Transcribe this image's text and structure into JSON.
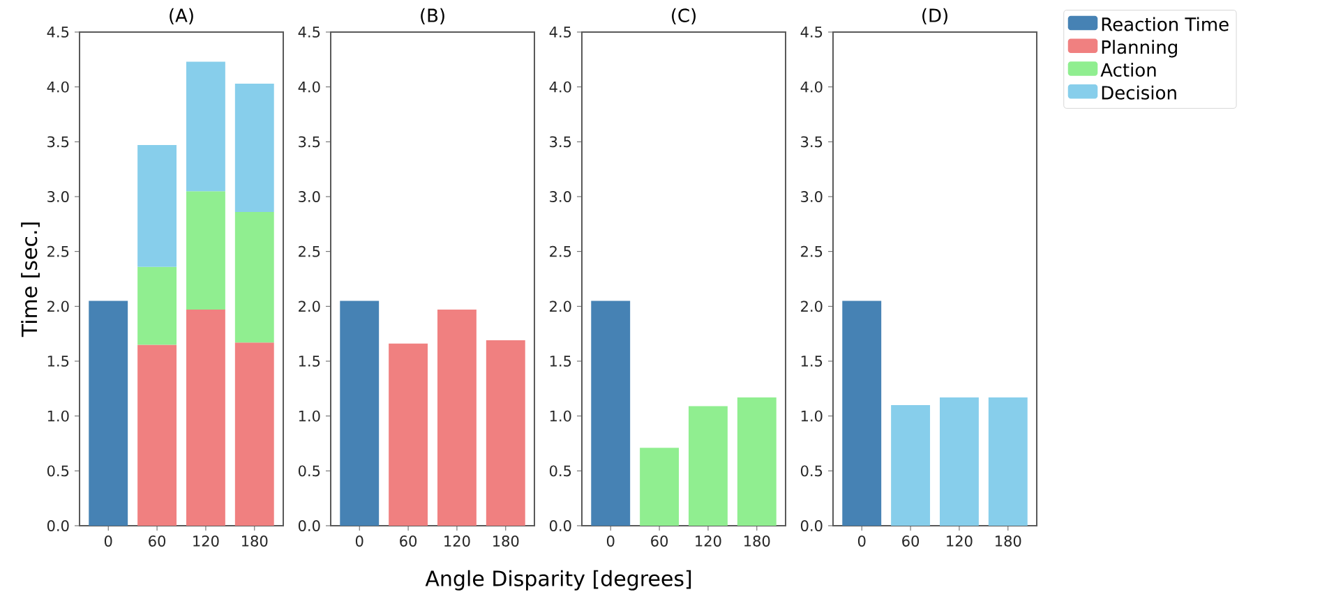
{
  "chart_data": [
    {
      "type": "bar",
      "title": "(A)",
      "ylabel": "Time [sec.]",
      "stacked": true,
      "legend": "right",
      "categories": [
        "0",
        "60",
        "120",
        "180"
      ],
      "ylim": [
        0,
        4.5
      ],
      "yticks": [
        {
          "value": 0,
          "label": "0.0"
        },
        {
          "value": 0.5,
          "label": "0.5"
        },
        {
          "value": 1,
          "label": "1.0"
        },
        {
          "value": 1.5,
          "label": "1.5"
        },
        {
          "value": 2,
          "label": "2.0"
        },
        {
          "value": 2.5,
          "label": "2.5"
        },
        {
          "value": 3,
          "label": "3.0"
        },
        {
          "value": 3.5,
          "label": "3.5"
        },
        {
          "value": 4,
          "label": "4.0"
        },
        {
          "value": 4.5,
          "label": "4.5"
        }
      ],
      "series": [
        {
          "name": "Reaction Time",
          "color": "#4682b4",
          "values": [
            2.05,
            null,
            null,
            null
          ]
        },
        {
          "name": "Planning",
          "color": "#f08080",
          "values": [
            null,
            1.65,
            1.97,
            1.67
          ]
        },
        {
          "name": "Action",
          "color": "#90ee90",
          "values": [
            null,
            0.71,
            1.08,
            1.19
          ]
        },
        {
          "name": "Decision",
          "color": "#87ceeb",
          "values": [
            null,
            1.11,
            1.18,
            1.17
          ]
        }
      ]
    },
    {
      "type": "bar",
      "title": "(B)",
      "xlabel": "Angle Disparity [degrees]",
      "stacked": true,
      "categories": [
        "0",
        "60",
        "120",
        "180"
      ],
      "ylim": [
        0,
        4.5
      ],
      "yticks": [
        {
          "value": 0,
          "label": "0.0"
        },
        {
          "value": 0.5,
          "label": "0.5"
        },
        {
          "value": 1,
          "label": "1.0"
        },
        {
          "value": 1.5,
          "label": "1.5"
        },
        {
          "value": 2,
          "label": "2.0"
        },
        {
          "value": 2.5,
          "label": "2.5"
        },
        {
          "value": 3,
          "label": "3.0"
        },
        {
          "value": 3.5,
          "label": "3.5"
        },
        {
          "value": 4,
          "label": "4.0"
        },
        {
          "value": 4.5,
          "label": "4.5"
        }
      ],
      "series": [
        {
          "color": "#4682b4",
          "values": [
            2.05,
            null,
            null,
            null
          ]
        },
        {
          "color": "#f08080",
          "values": [
            null,
            1.66,
            1.97,
            1.69
          ]
        }
      ]
    },
    {
      "type": "bar",
      "title": "(C)",
      "stacked": true,
      "categories": [
        "0",
        "60",
        "120",
        "180"
      ],
      "ylim": [
        0,
        4.5
      ],
      "yticks": [
        {
          "value": 0,
          "label": "0.0"
        },
        {
          "value": 0.5,
          "label": "0.5"
        },
        {
          "value": 1,
          "label": "1.0"
        },
        {
          "value": 1.5,
          "label": "1.5"
        },
        {
          "value": 2,
          "label": "2.0"
        },
        {
          "value": 2.5,
          "label": "2.5"
        },
        {
          "value": 3,
          "label": "3.0"
        },
        {
          "value": 3.5,
          "label": "3.5"
        },
        {
          "value": 4,
          "label": "4.0"
        },
        {
          "value": 4.5,
          "label": "4.5"
        }
      ],
      "series": [
        {
          "color": "#4682b4",
          "values": [
            2.05,
            null,
            null,
            null
          ]
        },
        {
          "color": "#90ee90",
          "values": [
            null,
            0.71,
            1.09,
            1.17
          ]
        }
      ]
    },
    {
      "type": "bar",
      "title": "(D)",
      "stacked": true,
      "categories": [
        "0",
        "60",
        "120",
        "180"
      ],
      "ylim": [
        0,
        4.5
      ],
      "yticks": [
        {
          "value": 0,
          "label": "0.0"
        },
        {
          "value": 0.5,
          "label": "0.5"
        },
        {
          "value": 1,
          "label": "1.0"
        },
        {
          "value": 1.5,
          "label": "1.5"
        },
        {
          "value": 2,
          "label": "2.0"
        },
        {
          "value": 2.5,
          "label": "2.5"
        },
        {
          "value": 3,
          "label": "3.0"
        },
        {
          "value": 3.5,
          "label": "3.5"
        },
        {
          "value": 4,
          "label": "4.0"
        },
        {
          "value": 4.5,
          "label": "4.5"
        }
      ],
      "series": [
        {
          "color": "#4682b4",
          "values": [
            2.05,
            null,
            null,
            null
          ]
        },
        {
          "color": "#87ceeb",
          "values": [
            null,
            1.1,
            1.17,
            1.17
          ]
        }
      ]
    }
  ]
}
